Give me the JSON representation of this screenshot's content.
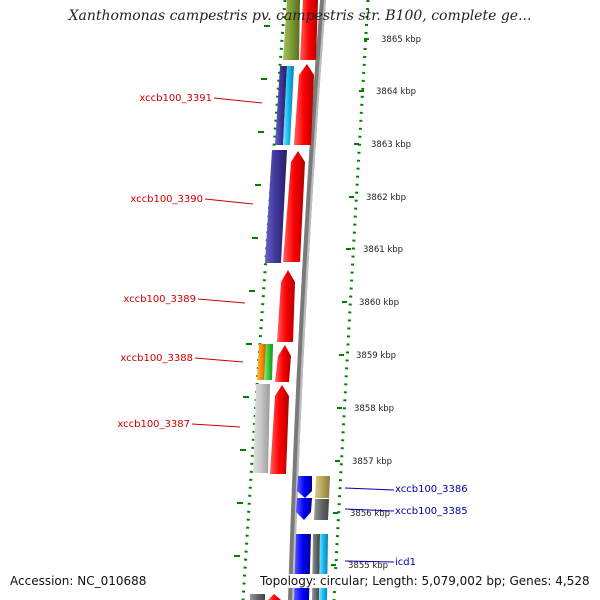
{
  "title": "Xanthomonas campestris pv. campestris str. B100, complete ge...",
  "footer": {
    "accession": "Accession: NC_010688",
    "summary": "Topology: circular; Length: 5,079,002 bp; Genes: 4,528"
  },
  "colors": {
    "background": "#ffffff",
    "forward_gene": "#ff0000",
    "reverse_gene": "#0000ff",
    "label_forward": "#cc0000",
    "label_reverse": "#0000aa",
    "tick": "#008000",
    "backbone": "#888888"
  },
  "scale": {
    "labels": [
      "3865 kbp",
      "3864 kbp",
      "3863 kbp",
      "3862 kbp",
      "3861 kbp",
      "3860 kbp",
      "3859 kbp",
      "3858 kbp",
      "3857 kbp",
      "3856 kbp",
      "3855 kbp"
    ]
  },
  "gene_labels": [
    {
      "text": "xccb100_3391",
      "strand": "forward"
    },
    {
      "text": "xccb100_3390",
      "strand": "forward"
    },
    {
      "text": "xccb100_3389",
      "strand": "forward"
    },
    {
      "text": "xccb100_3388",
      "strand": "forward"
    },
    {
      "text": "xccb100_3387",
      "strand": "forward"
    },
    {
      "text": "xccb100_3386",
      "strand": "reverse"
    },
    {
      "text": "xccb100_3385",
      "strand": "reverse"
    },
    {
      "text": "icd1",
      "strand": "reverse"
    }
  ]
}
